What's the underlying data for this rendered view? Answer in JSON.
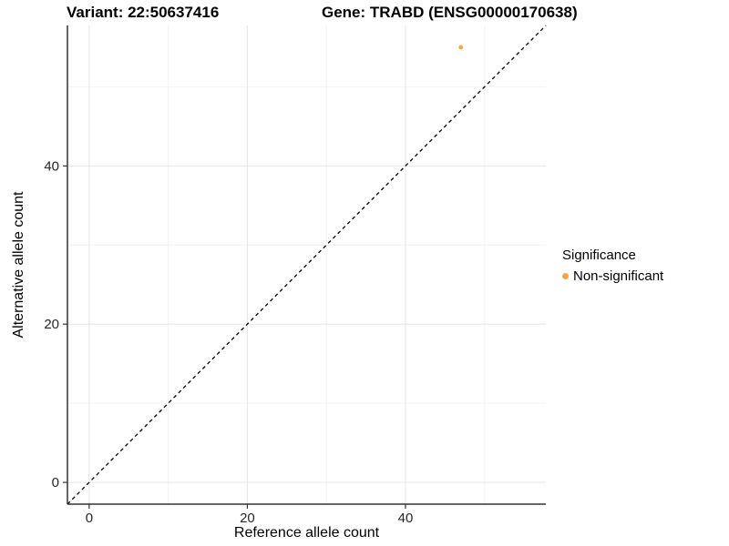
{
  "header": {
    "variant_title": "Variant: 22:50637416",
    "gene_title": "Gene: TRABD (ENSG00000170638)"
  },
  "legend": {
    "title": "Significance",
    "position": "right",
    "items": [
      {
        "label": "Non-significant",
        "color": "#FFA33B",
        "marker": "circle"
      }
    ]
  },
  "chart_data": {
    "type": "scatter",
    "title": "",
    "xlabel": "Reference allele count",
    "ylabel": "Alternative allele count",
    "xlim": [
      -2.75,
      57.75
    ],
    "ylim": [
      -2.75,
      57.75
    ],
    "x_ticks": [
      0,
      20,
      40
    ],
    "y_ticks": [
      0,
      20,
      40
    ],
    "x_minor_gridlines": [
      10,
      30,
      50
    ],
    "y_minor_gridlines": [
      10,
      30,
      50
    ],
    "grid": true,
    "legend_position": "right",
    "series": [
      {
        "name": "Non-significant",
        "color": "#FFA33B",
        "points": [
          {
            "x": 47,
            "y": 55
          }
        ]
      }
    ],
    "reference_line": {
      "type": "identity",
      "style": "dashed",
      "from": [
        -2.75,
        -2.75
      ],
      "to": [
        57.75,
        57.75
      ],
      "color": "#000000"
    }
  },
  "colors": {
    "axis_line": "#333333",
    "tick_label": "#262626",
    "grid_major": "#e6e6e6",
    "grid_minor": "#f2f2f2",
    "background": "#ffffff"
  }
}
